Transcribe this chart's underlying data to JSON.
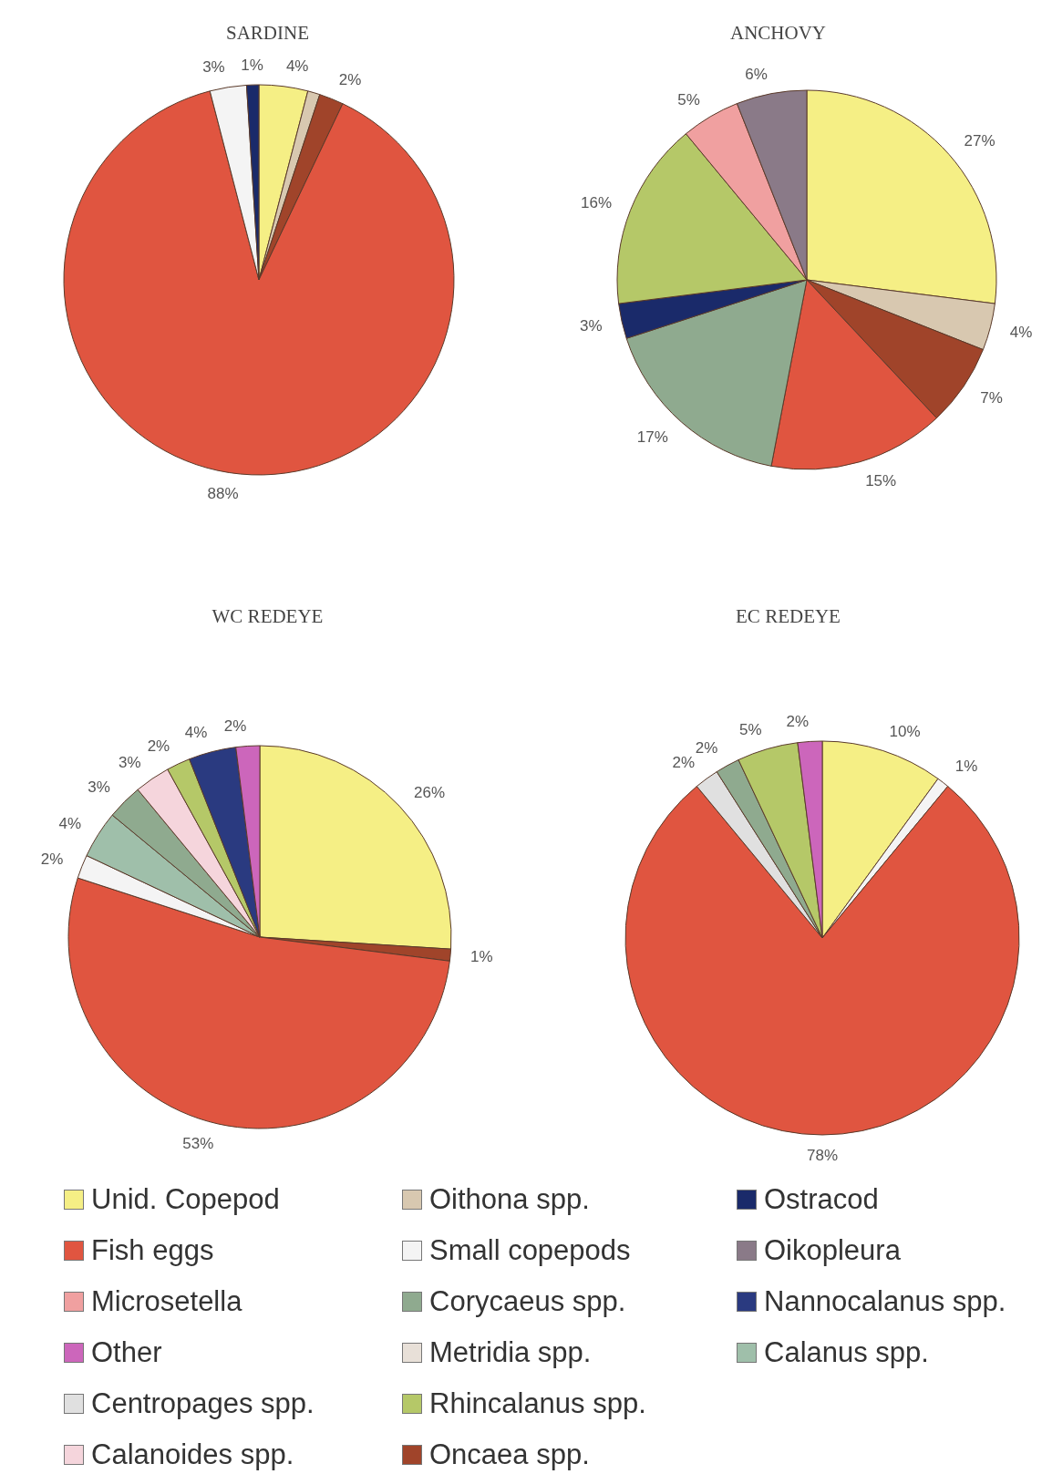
{
  "chart_data": [
    {
      "type": "pie",
      "title": "SARDINE",
      "categories": [
        null,
        null,
        null,
        null,
        null,
        null
      ],
      "values": [
        4,
        1,
        2,
        88,
        3,
        1
      ],
      "value_labels": [
        "4%",
        null,
        "2%",
        "88%",
        "3%",
        "1%"
      ],
      "colors": [
        "#f5ef85",
        "#d8c8b0",
        "#a0442a",
        "#e05540",
        "#f4f4f4",
        "#1a2a6a"
      ]
    },
    {
      "type": "pie",
      "title": "ANCHOVY",
      "categories": [
        null,
        null,
        null,
        null,
        null,
        null,
        null,
        null,
        null
      ],
      "values": [
        27,
        4,
        7,
        15,
        17,
        3,
        16,
        5,
        6
      ],
      "value_labels": [
        "27%",
        "4%",
        "7%",
        "15%",
        "17%",
        "3%",
        "16%",
        "5%",
        "6%"
      ],
      "colors": [
        "#f5ef85",
        "#d8c8b0",
        "#a0442a",
        "#e05540",
        "#8faa8f",
        "#1a2a6a",
        "#b5c868",
        "#f0a0a0",
        "#8a7a88"
      ]
    },
    {
      "type": "pie",
      "title": "WC REDEYE",
      "categories": [
        null,
        null,
        null,
        null,
        null,
        null,
        null,
        null,
        null,
        null
      ],
      "values": [
        26,
        1,
        53,
        2,
        4,
        3,
        3,
        2,
        4,
        2
      ],
      "value_labels": [
        "26%",
        "1%",
        "53%",
        "2%",
        "4%",
        "3%",
        "3%",
        "2%",
        "4%",
        "2%"
      ],
      "colors": [
        "#f5ef85",
        "#a0442a",
        "#e05540",
        "#f4f4f4",
        "#9fbfaa",
        "#8faa8f",
        "#f5d5dc",
        "#b5c868",
        "#2a3a80",
        "#cc66bb"
      ]
    },
    {
      "type": "pie",
      "title": "EC REDEYE",
      "categories": [
        null,
        null,
        null,
        null,
        null,
        null,
        null
      ],
      "values": [
        10,
        1,
        78,
        2,
        2,
        5,
        2
      ],
      "value_labels": [
        "10%",
        "1%",
        "78%",
        "2%",
        "2%",
        "5%",
        "2%"
      ],
      "colors": [
        "#f5ef85",
        "#f4f4f4",
        "#e05540",
        "#e0e0e0",
        "#8faa8f",
        "#b5c868",
        "#cc66bb"
      ]
    },
    {
      "type": "other",
      "categories": [
        "Unid. Copepod",
        "Fish eggs",
        "Microsetella",
        "Other",
        "Centropages spp.",
        "Calanoides spp.",
        "Oithona spp.",
        "Small copepods",
        "Corycaeus spp.",
        "Metridia spp.",
        "Rhincalanus spp.",
        "Oncaea spp.",
        "Ostracod",
        "Oikopleura",
        "Nannocalanus spp.",
        "Calanus spp."
      ],
      "colors": [
        "#f5ef85",
        "#e05540",
        "#f0a0a0",
        "#cc66bb",
        "#e0e0e0",
        "#f5d5dc",
        "#d8c8b0",
        "#f4f4f4",
        "#8faa8f",
        "#e8e0d8",
        "#b5c868",
        "#a0442a",
        "#1a2a6a",
        "#8a7a88",
        "#2a3a80",
        "#9fbfaa"
      ]
    }
  ]
}
